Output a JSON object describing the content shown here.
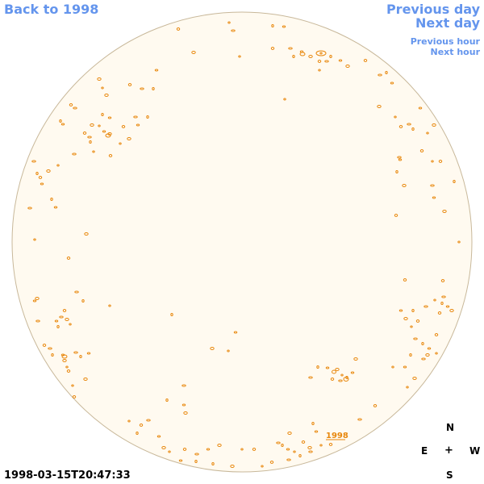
{
  "nav": {
    "back_label": "Back to 1998",
    "previous_day_label": "Previous day",
    "next_day_label": "Next day",
    "previous_hour_label": "Previous hour",
    "next_hour_label": "Next hour"
  },
  "disk": {
    "marker_label": "1998"
  },
  "timestamp": "1998-03-15T20:47:33",
  "compass": {
    "north": "N",
    "east": "E",
    "center": "+",
    "west": "W",
    "south": "S"
  },
  "colors": {
    "link": "#6495ed",
    "disk_fill": "#fffaf0",
    "disk_outline": "#c8b89a",
    "feature": "#e8870c"
  }
}
